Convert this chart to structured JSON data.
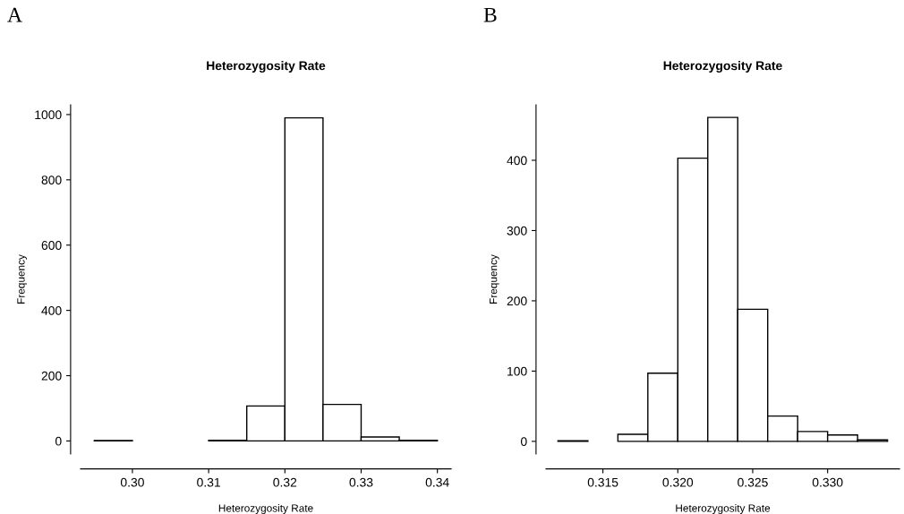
{
  "chart_data": [
    {
      "type": "histogram",
      "title": "Heterozygosity Rate",
      "xlabel": "Heterozygosity Rate",
      "ylabel": "Frequency",
      "annotations": [
        "A"
      ],
      "bins": [
        0.295,
        0.3,
        0.305,
        0.31,
        0.315,
        0.32,
        0.325,
        0.33,
        0.335,
        0.34
      ],
      "values": [
        1,
        0,
        0,
        2,
        107,
        990,
        112,
        12,
        2
      ],
      "color": "#ffffff",
      "xlim": [
        0.2932,
        0.3418
      ],
      "xticks": [
        {
          "value": 0.3,
          "label": "0.30"
        },
        0.31,
        0.32,
        0.33,
        0.34
      ],
      "ylim": [
        -40,
        1030
      ],
      "yticks": [
        0,
        200,
        400,
        600,
        800,
        1000
      ],
      "grid": false,
      "legend": false
    },
    {
      "type": "histogram",
      "title": "Heterozygosity Rate",
      "xlabel": "Heterozygosity Rate",
      "ylabel": "Frequency",
      "annotations": [
        "B"
      ],
      "bins": [
        0.312,
        0.314,
        0.316,
        0.318,
        0.32,
        0.322,
        0.324,
        0.326,
        0.328,
        0.33,
        0.332,
        0.334
      ],
      "values": [
        1,
        0,
        10,
        97,
        403,
        461,
        188,
        36,
        14,
        9,
        2
      ],
      "color": "#ffffff",
      "xlim": [
        0.3112,
        0.3348
      ],
      "xticks": [
        0.315,
        {
          "value": 0.32,
          "label": "0.320"
        },
        0.325,
        {
          "value": 0.33,
          "label": "0.330"
        }
      ],
      "ylim": [
        -18,
        479
      ],
      "yticks": [
        0,
        100,
        200,
        300,
        400
      ],
      "grid": false,
      "legend": false
    }
  ]
}
